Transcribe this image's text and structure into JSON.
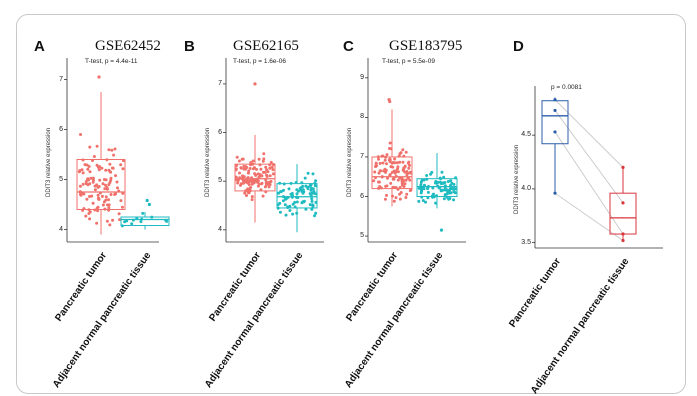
{
  "chart_data": [
    {
      "type": "box",
      "panel": "A",
      "title": "GSE62452",
      "test": "T-test, p = 4.4e-11",
      "ylabel": "DDIT3 relative expression",
      "yticks": [
        4,
        5,
        6,
        7
      ],
      "ylim": [
        3.75,
        7.35
      ],
      "categories": [
        "Pancreatic tumor",
        "Adjacent normal pancreatic tissue"
      ],
      "colors": [
        "#f0716b",
        "#1fbbc0"
      ],
      "boxes": [
        {
          "min": 3.9,
          "q1": 4.4,
          "median": 4.75,
          "q3": 5.4,
          "max": 6.75
        },
        {
          "min": 4.0,
          "q1": 4.08,
          "median": 4.2,
          "q3": 4.25,
          "max": 4.35
        }
      ],
      "outliers": [
        [
          7.05
        ],
        [
          4.58,
          4.5
        ]
      ]
    },
    {
      "type": "box",
      "panel": "B",
      "title": "GSE62165",
      "test": "T-test, p = 1.6e-06",
      "ylabel": "DDIT3 relative expression",
      "yticks": [
        4,
        5,
        6,
        7
      ],
      "ylim": [
        3.75,
        7.45
      ],
      "categories": [
        "Pancreatic tumor",
        "Adjacent normal pancreatic tissue"
      ],
      "colors": [
        "#f0716b",
        "#1fbbc0"
      ],
      "boxes": [
        {
          "min": 4.15,
          "q1": 4.8,
          "median": 5.05,
          "q3": 5.35,
          "max": 5.95
        },
        {
          "min": 3.95,
          "q1": 4.45,
          "median": 4.68,
          "q3": 4.95,
          "max": 5.35
        }
      ],
      "outliers": [
        [
          7.0
        ],
        []
      ]
    },
    {
      "type": "box",
      "panel": "C",
      "title": "GSE183795",
      "test": "T-test, p = 5.5e-09",
      "ylabel": "DDIT3 relative expression",
      "yticks": [
        5,
        6,
        7,
        8,
        9
      ],
      "ylim": [
        4.85,
        9.4
      ],
      "categories": [
        "Pancreatic tumor",
        "Adjacent normal pancreatic tissue"
      ],
      "colors": [
        "#f0716b",
        "#1fbbc0"
      ],
      "boxes": [
        {
          "min": 5.75,
          "q1": 6.2,
          "median": 6.5,
          "q3": 7.0,
          "max": 8.2
        },
        {
          "min": 5.7,
          "q1": 6.0,
          "median": 6.25,
          "q3": 6.45,
          "max": 7.1
        }
      ],
      "outliers": [
        [
          8.45,
          8.4
        ],
        [
          5.15
        ]
      ]
    },
    {
      "type": "paired-box",
      "panel": "D",
      "title": "",
      "test": "p = 0.0081",
      "ylabel": "DDIT3 relative expression",
      "yticks": [
        3.5,
        4.0,
        4.5
      ],
      "ylim": [
        3.45,
        4.92
      ],
      "categories": [
        "Pancreatic tumor",
        "Adjacent normal pancreatic tissue"
      ],
      "colors": [
        "#2b5fa8",
        "#d9363e"
      ],
      "boxes": [
        {
          "min": 3.96,
          "q1": 4.42,
          "median": 4.68,
          "q3": 4.82,
          "max": 4.85
        },
        {
          "min": 3.52,
          "q1": 3.58,
          "median": 3.73,
          "q3": 3.96,
          "max": 4.2
        }
      ],
      "pairs": [
        [
          4.83,
          4.2
        ],
        [
          4.73,
          3.87
        ],
        [
          4.53,
          3.58
        ],
        [
          3.96,
          3.52
        ]
      ]
    }
  ]
}
